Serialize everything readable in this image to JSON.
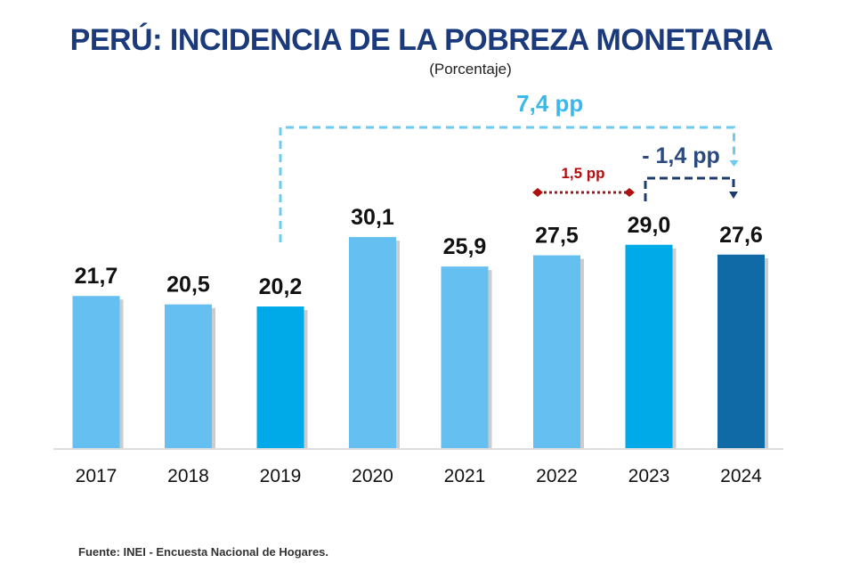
{
  "chart_data": {
    "type": "bar",
    "title": "PERÚ: INCIDENCIA DE LA POBREZA MONETARIA",
    "subtitle": "(Porcentaje)",
    "categories": [
      "2017",
      "2018",
      "2019",
      "2020",
      "2021",
      "2022",
      "2023",
      "2024"
    ],
    "values": [
      21.7,
      20.5,
      20.2,
      30.1,
      25.9,
      27.5,
      29.0,
      27.6
    ],
    "data_labels": [
      "21,7",
      "20,5",
      "20,2",
      "30,1",
      "25,9",
      "27,5",
      "29,0",
      "27,6"
    ],
    "colors": [
      "#65bff0",
      "#65bff0",
      "#00a9e8",
      "#65bff0",
      "#65bff0",
      "#65bff0",
      "#00a9e8",
      "#0f6aa6"
    ],
    "ylim": [
      0,
      31
    ],
    "grid": false,
    "annotations": [
      {
        "text": "7,4 pp",
        "from": "2019",
        "to": "2024",
        "color": "#3bb8ea"
      },
      {
        "text": "1,5 pp",
        "from": "2022",
        "to": "2023",
        "color": "#b01010"
      },
      {
        "text": "- 1,4 pp",
        "from": "2023",
        "to": "2024",
        "color": "#2a4a80"
      }
    ],
    "source": "Fuente: INEI - Encuesta Nacional de Hogares."
  }
}
